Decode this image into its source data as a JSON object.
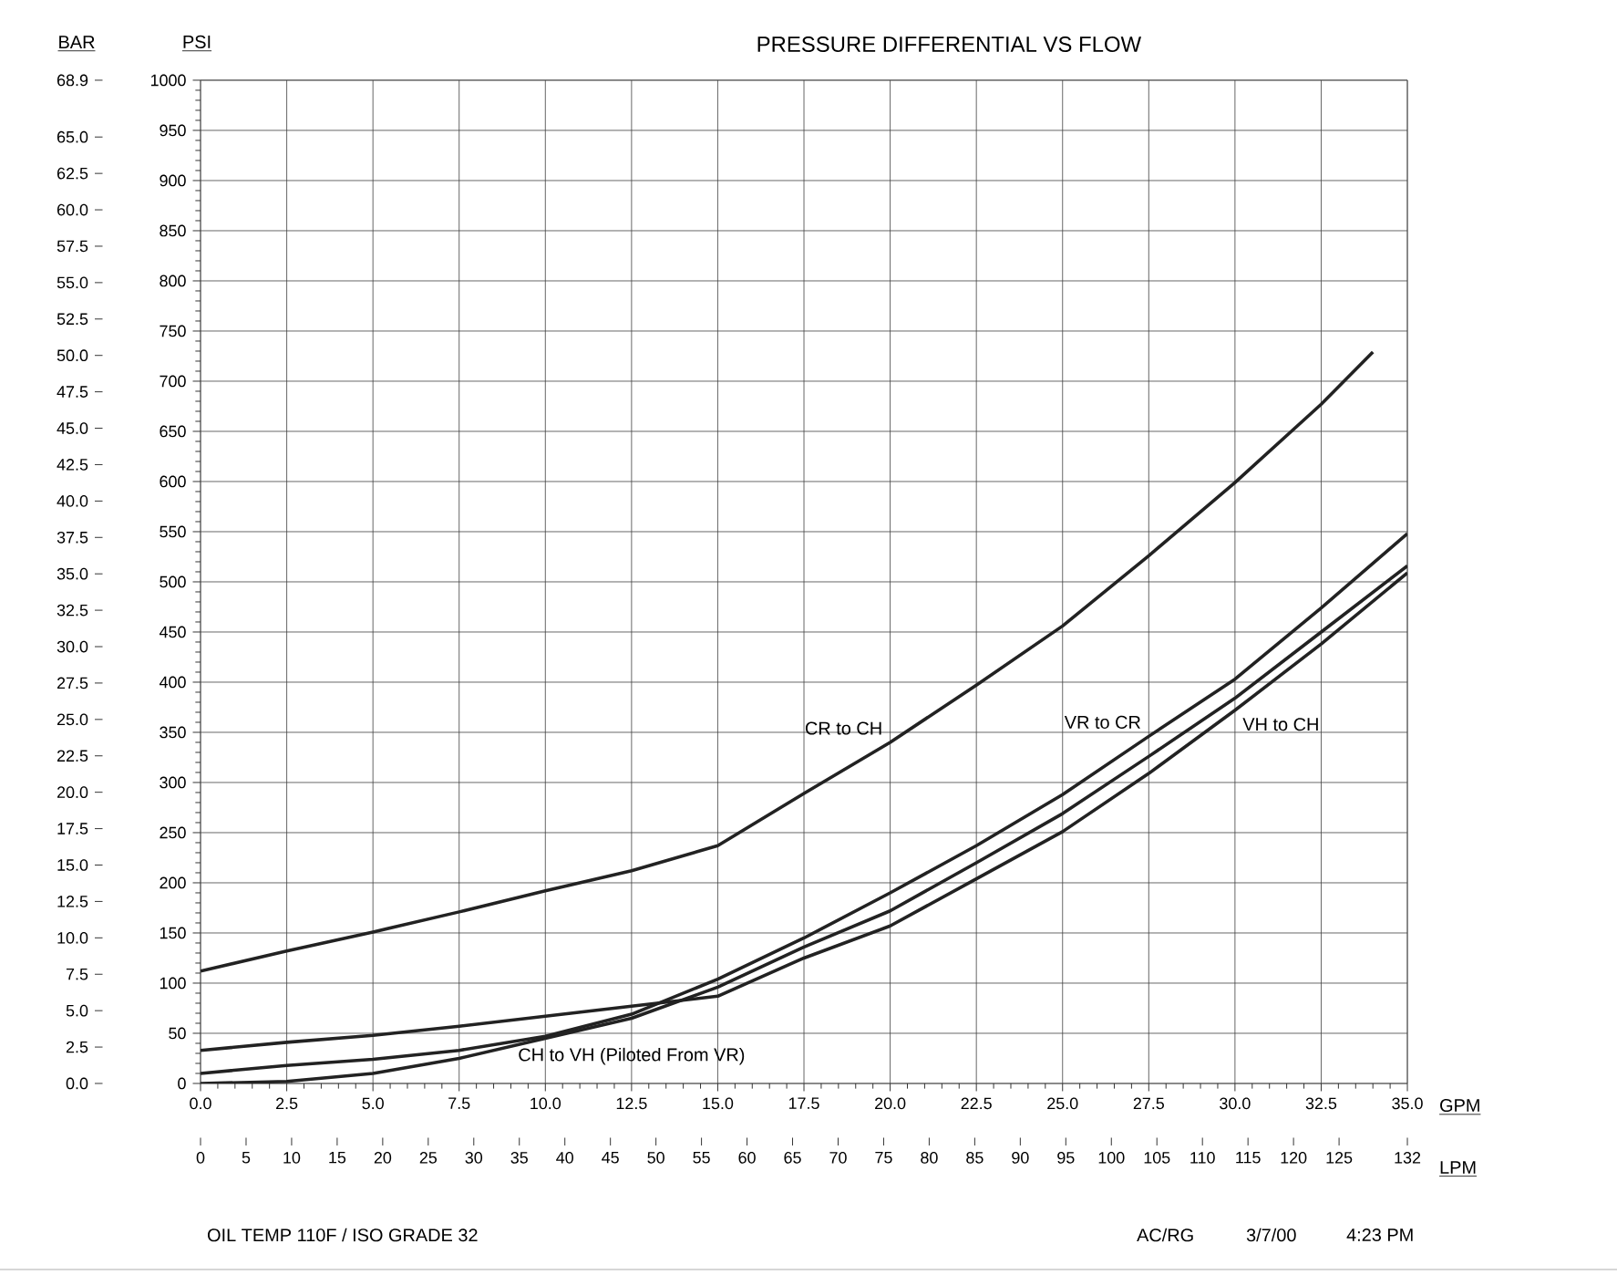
{
  "chart_data": {
    "type": "line",
    "title": "PRESSURE DIFFERENTIAL VS FLOW",
    "xlabel": "GPM",
    "ylabel": "PSI",
    "y2label": "BAR",
    "x2label": "LPM",
    "x": [
      0,
      2.5,
      5,
      7.5,
      10,
      12.5,
      15,
      17.5,
      20,
      22.5,
      25,
      27.5,
      30,
      32.5,
      35
    ],
    "series": [
      {
        "name": "CR to CH",
        "color": "#222222",
        "x": [
          0,
          2.5,
          5,
          7.5,
          10,
          12.5,
          15,
          17.5,
          20,
          22.5,
          25,
          27.5,
          30,
          32.5,
          34
        ],
        "values": [
          112,
          132,
          151,
          171,
          192,
          212,
          237,
          289,
          340,
          397,
          456,
          526,
          599,
          677,
          729
        ]
      },
      {
        "name": "VR to CR",
        "color": "#222222",
        "values": [
          10,
          18,
          24,
          33,
          47,
          69,
          104,
          145,
          190,
          237,
          288,
          346,
          403,
          474,
          548
        ]
      },
      {
        "name": "VH to CH",
        "color": "#222222",
        "values": [
          33,
          41,
          48,
          57,
          67,
          77,
          87,
          125,
          157,
          204,
          251,
          309,
          372,
          438,
          509
        ]
      },
      {
        "name": "CH to VH (Piloted From VR)",
        "color": "#222222",
        "values": [
          0,
          2,
          10,
          25,
          45,
          65,
          96,
          136,
          172,
          220,
          269,
          326,
          384,
          450,
          516
        ]
      }
    ],
    "xlim": [
      0,
      35
    ],
    "ylim": [
      0,
      1000
    ],
    "xticks": [
      {
        "value": 0,
        "label": "0.0"
      },
      {
        "value": 2.5,
        "label": "2.5"
      },
      {
        "value": 5,
        "label": "5.0"
      },
      {
        "value": 7.5,
        "label": "7.5"
      },
      {
        "value": 10,
        "label": "10.0"
      },
      {
        "value": 12.5,
        "label": "12.5"
      },
      {
        "value": 15,
        "label": "15.0"
      },
      {
        "value": 17.5,
        "label": "17.5"
      },
      {
        "value": 20,
        "label": "20.0"
      },
      {
        "value": 22.5,
        "label": "22.5"
      },
      {
        "value": 25,
        "label": "25.0"
      },
      {
        "value": 27.5,
        "label": "27.5"
      },
      {
        "value": 30,
        "label": "30.0"
      },
      {
        "value": 32.5,
        "label": "32.5"
      },
      {
        "value": 35,
        "label": "35.0"
      }
    ],
    "yticks": [
      0,
      50,
      100,
      150,
      200,
      250,
      300,
      350,
      400,
      450,
      500,
      550,
      600,
      650,
      700,
      750,
      800,
      850,
      900,
      950,
      1000
    ],
    "y2lim": [
      0,
      68.9
    ],
    "y2ticks": [
      {
        "value": 0,
        "label": "0.0"
      },
      {
        "value": 2.5,
        "label": "2.5"
      },
      {
        "value": 5,
        "label": "5.0"
      },
      {
        "value": 7.5,
        "label": "7.5"
      },
      {
        "value": 10,
        "label": "10.0"
      },
      {
        "value": 12.5,
        "label": "12.5"
      },
      {
        "value": 15,
        "label": "15.0"
      },
      {
        "value": 17.5,
        "label": "17.5"
      },
      {
        "value": 20,
        "label": "20.0"
      },
      {
        "value": 22.5,
        "label": "22.5"
      },
      {
        "value": 25,
        "label": "25.0"
      },
      {
        "value": 27.5,
        "label": "27.5"
      },
      {
        "value": 30,
        "label": "30.0"
      },
      {
        "value": 32.5,
        "label": "32.5"
      },
      {
        "value": 35,
        "label": "35.0"
      },
      {
        "value": 37.5,
        "label": "37.5"
      },
      {
        "value": 40,
        "label": "40.0"
      },
      {
        "value": 42.5,
        "label": "42.5"
      },
      {
        "value": 45,
        "label": "45.0"
      },
      {
        "value": 47.5,
        "label": "47.5"
      },
      {
        "value": 50,
        "label": "50.0"
      },
      {
        "value": 52.5,
        "label": "52.5"
      },
      {
        "value": 55,
        "label": "55.0"
      },
      {
        "value": 57.5,
        "label": "57.5"
      },
      {
        "value": 60,
        "label": "60.0"
      },
      {
        "value": 62.5,
        "label": "62.5"
      },
      {
        "value": 65,
        "label": "65.0"
      },
      68.9
    ],
    "x2lim": [
      0,
      132.5
    ],
    "x2ticks": [
      0,
      5,
      10,
      15,
      20,
      25,
      30,
      35,
      40,
      45,
      50,
      55,
      60,
      65,
      70,
      75,
      80,
      85,
      90,
      95,
      100,
      105,
      110,
      115,
      120,
      125,
      {
        "value": 132.5,
        "label": "132"
      }
    ],
    "grid": true,
    "annotations": [
      "OIL TEMP 110F / ISO GRADE 32",
      "AC/RG",
      "3/7/00",
      "4:23 PM"
    ]
  }
}
